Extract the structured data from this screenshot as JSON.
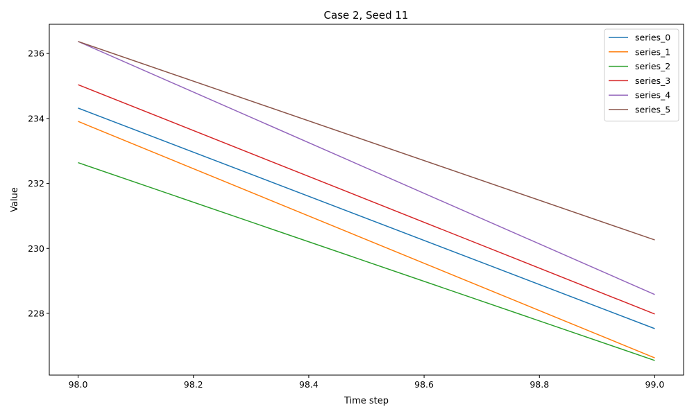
{
  "chart_data": {
    "type": "line",
    "title": "Case 2, Seed 11",
    "xlabel": "Time step",
    "ylabel": "Value",
    "x": [
      98.0,
      99.0
    ],
    "xlim": [
      97.95,
      99.05
    ],
    "ylim": [
      226.1,
      236.9
    ],
    "xticks": [
      98.0,
      98.2,
      98.4,
      98.6,
      98.8,
      99.0
    ],
    "xtick_labels": [
      "98.0",
      "98.2",
      "98.4",
      "98.6",
      "98.8",
      "99.0"
    ],
    "yticks": [
      228,
      230,
      232,
      234,
      236
    ],
    "ytick_labels": [
      "228",
      "230",
      "232",
      "234",
      "236"
    ],
    "grid": false,
    "legend_position": "top-right",
    "series": [
      {
        "name": "series_0",
        "color": "#1f77b4",
        "values": [
          234.32,
          227.53
        ]
      },
      {
        "name": "series_1",
        "color": "#ff7f0e",
        "values": [
          233.91,
          226.63
        ]
      },
      {
        "name": "series_2",
        "color": "#2ca02c",
        "values": [
          232.64,
          226.55
        ]
      },
      {
        "name": "series_3",
        "color": "#d62728",
        "values": [
          235.04,
          227.98
        ]
      },
      {
        "name": "series_4",
        "color": "#9467bd",
        "values": [
          236.37,
          228.58
        ]
      },
      {
        "name": "series_5",
        "color": "#8c564b",
        "values": [
          236.37,
          230.26
        ]
      }
    ]
  }
}
